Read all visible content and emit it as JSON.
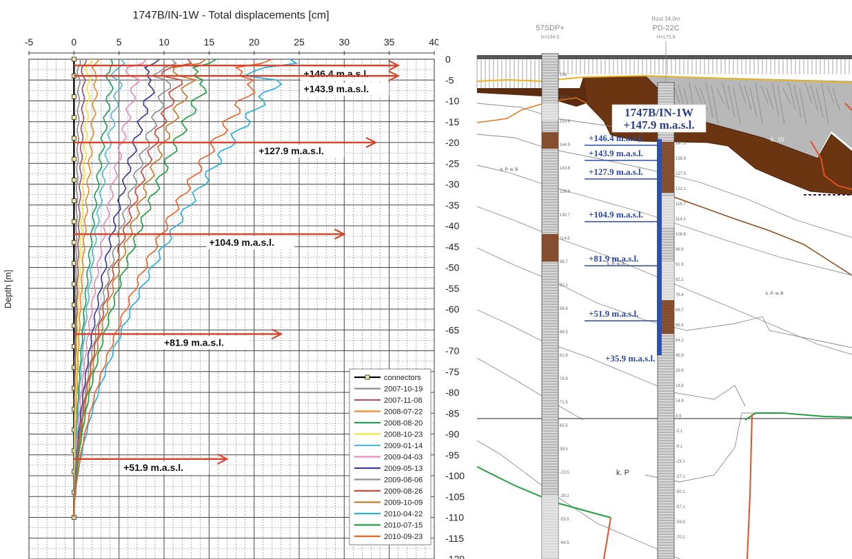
{
  "chart_data": {
    "type": "line",
    "title": "1747B/IN-1W - Total displacements [cm]",
    "xlabel": "",
    "ylabel": "Depth [m]",
    "xlim": [
      -5,
      40
    ],
    "ylim": [
      -120,
      0
    ],
    "x_ticks": [
      -5,
      0,
      5,
      10,
      15,
      20,
      25,
      30,
      35,
      40
    ],
    "y_ticks": [
      0,
      -5,
      -10,
      -15,
      -20,
      -25,
      -30,
      -35,
      -40,
      -45,
      -50,
      -55,
      -60,
      -65,
      -70,
      -75,
      -80,
      -85,
      -90,
      -95,
      -100,
      -105,
      -110,
      -115,
      -120
    ],
    "grid": true,
    "legend_position": "bottom-right",
    "connectors": {
      "name": "connectors",
      "color": "#000000",
      "depths": [
        0,
        -4,
        -9,
        -14,
        -19,
        -24,
        -29,
        -34,
        -39,
        -44,
        -49,
        -54,
        -59,
        -64,
        -69,
        -74,
        -79,
        -84,
        -89,
        -94,
        -99,
        -104,
        -110
      ]
    },
    "series": [
      {
        "name": "2007-10-19",
        "color": "#8c8c8c",
        "final": 0.6
      },
      {
        "name": "2007-11-08",
        "color": "#a0567a",
        "final": 1.2
      },
      {
        "name": "2008-07-22",
        "color": "#f08a2c",
        "final": 2.7
      },
      {
        "name": "2008-08-20",
        "color": "#22a05a",
        "final": 4.5
      },
      {
        "name": "2008-10-23",
        "color": "#f2e53a",
        "final": 1.8
      },
      {
        "name": "2009-01-14",
        "color": "#58b8d8",
        "final": 5.5
      },
      {
        "name": "2009-04-03",
        "color": "#f08ab8",
        "final": 7.5
      },
      {
        "name": "2009-05-13",
        "color": "#3a3aa0",
        "final": 9.6
      },
      {
        "name": "2009-08-06",
        "color": "#909090",
        "final": 11.4
      },
      {
        "name": "2009-08-26",
        "color": "#c84a3a",
        "final": 12.6
      },
      {
        "name": "2009-10-09",
        "color": "#c87a2a",
        "final": 14.0
      },
      {
        "name": "2010-04-22",
        "color": "#2aaee0",
        "final": 24.5
      },
      {
        "name": "2010-07-15",
        "color": "#20a040",
        "final": 16.0
      },
      {
        "name": "2010-09-23",
        "color": "#f0642a",
        "final": 22.0
      }
    ],
    "annotations": [
      {
        "label": "+146.4 m.a.s.l.",
        "depth": -1.5
      },
      {
        "label": "+143.9 m.a.s.l.",
        "depth": -4
      },
      {
        "label": "+127.9 m.a.s.l.",
        "depth": -20
      },
      {
        "label": "+104.9 m.a.s.l.",
        "depth": -42
      },
      {
        "label": "+81.9 m.a.s.l.",
        "depth": -66
      },
      {
        "label": "+51.9 m.a.s.l.",
        "depth": -96
      }
    ],
    "arrow_color": "#d6452e"
  },
  "section": {
    "borehole_left": {
      "name": "57SDP+",
      "elev": "H=194.5"
    },
    "borehole_right": {
      "top": "Rzut 24.0m",
      "name": "PD-22C",
      "elev": "H=175.9"
    },
    "inclinometer_title": "1747B/IN-1W",
    "inclinometer_elev": "+147.9 m.a.s.l.",
    "levels": [
      {
        "label": "+146.4 m.a.s.l.",
        "depth": -1.5
      },
      {
        "label": "+143.9 m.a.s.l.",
        "depth": -4
      },
      {
        "label": "+127.9 m.a.s.l.",
        "depth": -20
      },
      {
        "label": "+104.9 m.a.s.l.",
        "depth": -42
      },
      {
        "label": "+81.9 m.a.s.l.",
        "depth": -66
      },
      {
        "label": "+51.9 m.a.s.l.",
        "depth": -96
      }
    ],
    "bottom_label": "+35.9 m.a.s.l.",
    "zones": [
      "k. W",
      "k. P- w. B",
      "k. P- w. A",
      "k. P- w. B",
      "k. P"
    ],
    "depth_ticks": [
      0,
      -5,
      -10,
      -15,
      -20,
      -25,
      -30,
      -35,
      -40,
      -45,
      -50,
      -55,
      -60,
      -65,
      -70,
      -75,
      -80,
      -85,
      -90,
      -95,
      -100,
      -105,
      -110,
      -115,
      -120
    ],
    "left_well_labels": [
      "166",
      "157.5",
      "150.8",
      "144.9",
      "143.6",
      "138.5",
      "130.7",
      "114.5",
      "98.7",
      "92.1",
      "89.6",
      "86.5",
      "81.6",
      "78.8",
      "71.5",
      "65.5",
      "39.5",
      "-23.5",
      "-29.2",
      "-53.5",
      "-64.5"
    ],
    "right_well_labels": [
      "147.9",
      "138.9",
      "127.5",
      "122.1",
      "116.7",
      "114.2",
      "108.6",
      "96.9",
      "91.9",
      "82.2",
      "79.4",
      "68.7",
      "66.4",
      "64.2",
      "45.9",
      "29.9",
      "18.9",
      "14.9",
      "4.9",
      "-5.1",
      "-9.1",
      "-23.1",
      "-27.1",
      "-50.1",
      "-57.1",
      "-59.6",
      "-70.1"
    ]
  }
}
